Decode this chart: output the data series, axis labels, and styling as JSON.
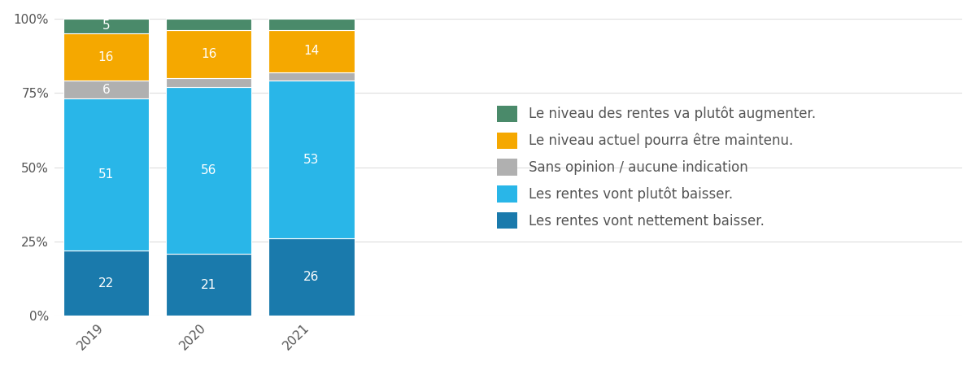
{
  "years": [
    "2019",
    "2020",
    "2021"
  ],
  "segments": {
    "dark_blue": [
      22,
      21,
      26
    ],
    "light_blue": [
      51,
      56,
      53
    ],
    "gray": [
      6,
      3,
      3
    ],
    "orange": [
      16,
      16,
      14
    ],
    "green": [
      5,
      4,
      4
    ]
  },
  "colors": {
    "dark_blue": "#1a7aac",
    "light_blue": "#29b6e8",
    "gray": "#b0b0b0",
    "orange": "#f5a800",
    "green": "#4a8a6a"
  },
  "labels": {
    "dark_blue": "Les rentes vont nettement baisser.",
    "light_blue": "Les rentes vont plutôt baisser.",
    "gray": "Sans opinion / aucune indication",
    "orange": "Le niveau actuel pourra être maintenu.",
    "green": "Le niveau des rentes va plutôt augmenter."
  },
  "bar_width": 0.25,
  "bar_spacing": 0.05,
  "legend_fontsize": 12,
  "label_fontsize": 11,
  "tick_fontsize": 11,
  "ytick_labels": [
    "0%",
    "25%",
    "50%",
    "75%",
    "100%"
  ],
  "ytick_values": [
    0,
    25,
    50,
    75,
    100
  ],
  "background_color": "#ffffff"
}
